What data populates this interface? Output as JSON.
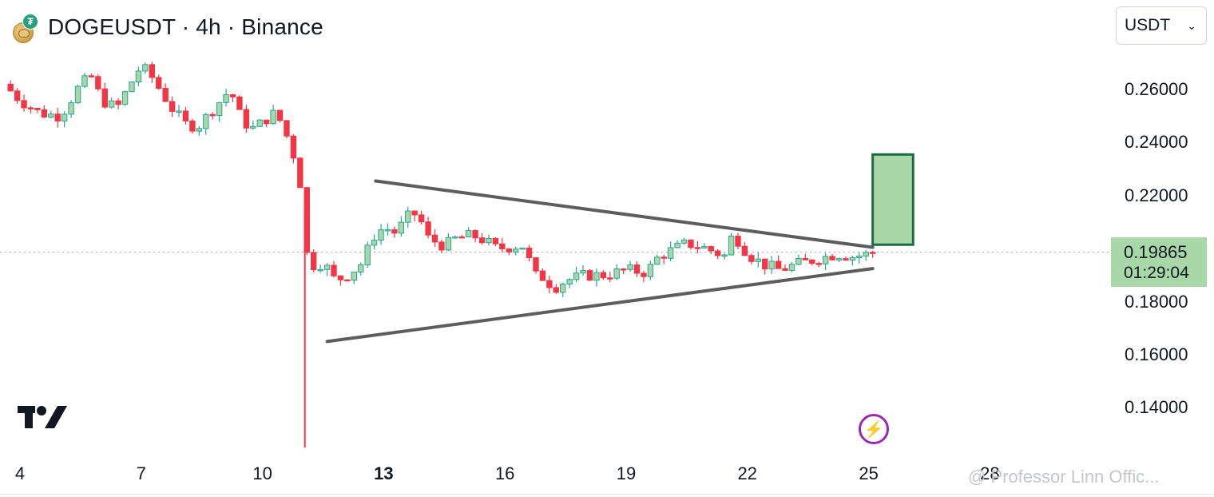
{
  "header": {
    "title": "DOGEUSDT · 4h · Binance",
    "base_icon": "doge-coin-icon",
    "quote_icon": "tether-icon",
    "quote_glyph": "₮"
  },
  "currency_selector": {
    "value": "USDT"
  },
  "price_axis": {
    "labels": [
      "0.26000",
      "0.24000",
      "0.22000",
      "0.18000",
      "0.16000",
      "0.14000"
    ]
  },
  "last_price": {
    "value": "0.19865",
    "countdown": "01:29:04"
  },
  "time_axis": {
    "labels": [
      "4",
      "7",
      "10",
      "13",
      "16",
      "19",
      "22",
      "25",
      "28"
    ],
    "bold": "13"
  },
  "watermark": {
    "text": "@ Professor Linn Offic..."
  },
  "colors": {
    "up": "#26a69a",
    "up_fill": "#a8d8a8",
    "down": "#f23645",
    "trendline": "#5d5d5d",
    "target_fill": "#a8d8a8",
    "target_border": "#1b6b45"
  },
  "chart_data": {
    "type": "candlestick",
    "symbol": "DOGEUSDT",
    "timeframe": "4h",
    "exchange": "Binance",
    "ylim": [
      0.125,
      0.285
    ],
    "x_ticks": [
      4,
      7,
      10,
      13,
      16,
      19,
      22,
      25,
      28
    ],
    "last_price": 0.19865,
    "close_path": [
      [
        3.6,
        0.262
      ],
      [
        4.0,
        0.256
      ],
      [
        4.5,
        0.251
      ],
      [
        5.0,
        0.25
      ],
      [
        5.5,
        0.262
      ],
      [
        5.8,
        0.265
      ],
      [
        6.0,
        0.256
      ],
      [
        6.4,
        0.253
      ],
      [
        6.8,
        0.264
      ],
      [
        7.0,
        0.269
      ],
      [
        7.3,
        0.264
      ],
      [
        7.5,
        0.259
      ],
      [
        7.8,
        0.252
      ],
      [
        8.1,
        0.247
      ],
      [
        8.4,
        0.246
      ],
      [
        8.8,
        0.253
      ],
      [
        9.2,
        0.26
      ],
      [
        9.5,
        0.248
      ],
      [
        9.8,
        0.245
      ],
      [
        10.0,
        0.248
      ],
      [
        10.3,
        0.251
      ],
      [
        10.5,
        0.247
      ],
      [
        10.7,
        0.238
      ],
      [
        10.9,
        0.23
      ],
      [
        11.1,
        0.198
      ],
      [
        11.3,
        0.193
      ],
      [
        11.5,
        0.195
      ],
      [
        11.8,
        0.188
      ],
      [
        12.1,
        0.19
      ],
      [
        12.5,
        0.195
      ],
      [
        12.7,
        0.204
      ],
      [
        13.0,
        0.208
      ],
      [
        13.3,
        0.206
      ],
      [
        13.7,
        0.214
      ],
      [
        13.9,
        0.211
      ],
      [
        14.1,
        0.204
      ],
      [
        14.5,
        0.201
      ],
      [
        14.8,
        0.204
      ],
      [
        15.2,
        0.205
      ],
      [
        15.5,
        0.203
      ],
      [
        15.8,
        0.2
      ],
      [
        16.3,
        0.201
      ],
      [
        16.5,
        0.201
      ],
      [
        16.7,
        0.19
      ],
      [
        17.0,
        0.189
      ],
      [
        17.2,
        0.185
      ],
      [
        17.5,
        0.188
      ],
      [
        18.0,
        0.19
      ],
      [
        18.5,
        0.19
      ],
      [
        19.0,
        0.192
      ],
      [
        19.5,
        0.191
      ],
      [
        19.8,
        0.197
      ],
      [
        20.2,
        0.2
      ],
      [
        20.5,
        0.202
      ],
      [
        21.0,
        0.2
      ],
      [
        21.3,
        0.198
      ],
      [
        21.5,
        0.197
      ],
      [
        21.6,
        0.204
      ],
      [
        21.8,
        0.203
      ],
      [
        22.0,
        0.198
      ],
      [
        22.4,
        0.194
      ],
      [
        22.8,
        0.192
      ],
      [
        23.2,
        0.194
      ],
      [
        23.7,
        0.196
      ],
      [
        24.2,
        0.198
      ],
      [
        24.6,
        0.197
      ],
      [
        25.0,
        0.198
      ],
      [
        25.1,
        0.19865
      ]
    ],
    "trendlines": [
      {
        "name": "upper",
        "from": [
          12.8,
          0.2255
        ],
        "to": [
          25.1,
          0.2005
        ]
      },
      {
        "name": "lower",
        "from": [
          11.6,
          0.165
        ],
        "to": [
          25.1,
          0.1925
        ]
      }
    ],
    "target_box": {
      "x0": 25.1,
      "x1": 26.1,
      "y0": 0.2015,
      "y1": 0.2355
    },
    "long_wick": {
      "x": 11.05,
      "low": 0.125
    }
  }
}
